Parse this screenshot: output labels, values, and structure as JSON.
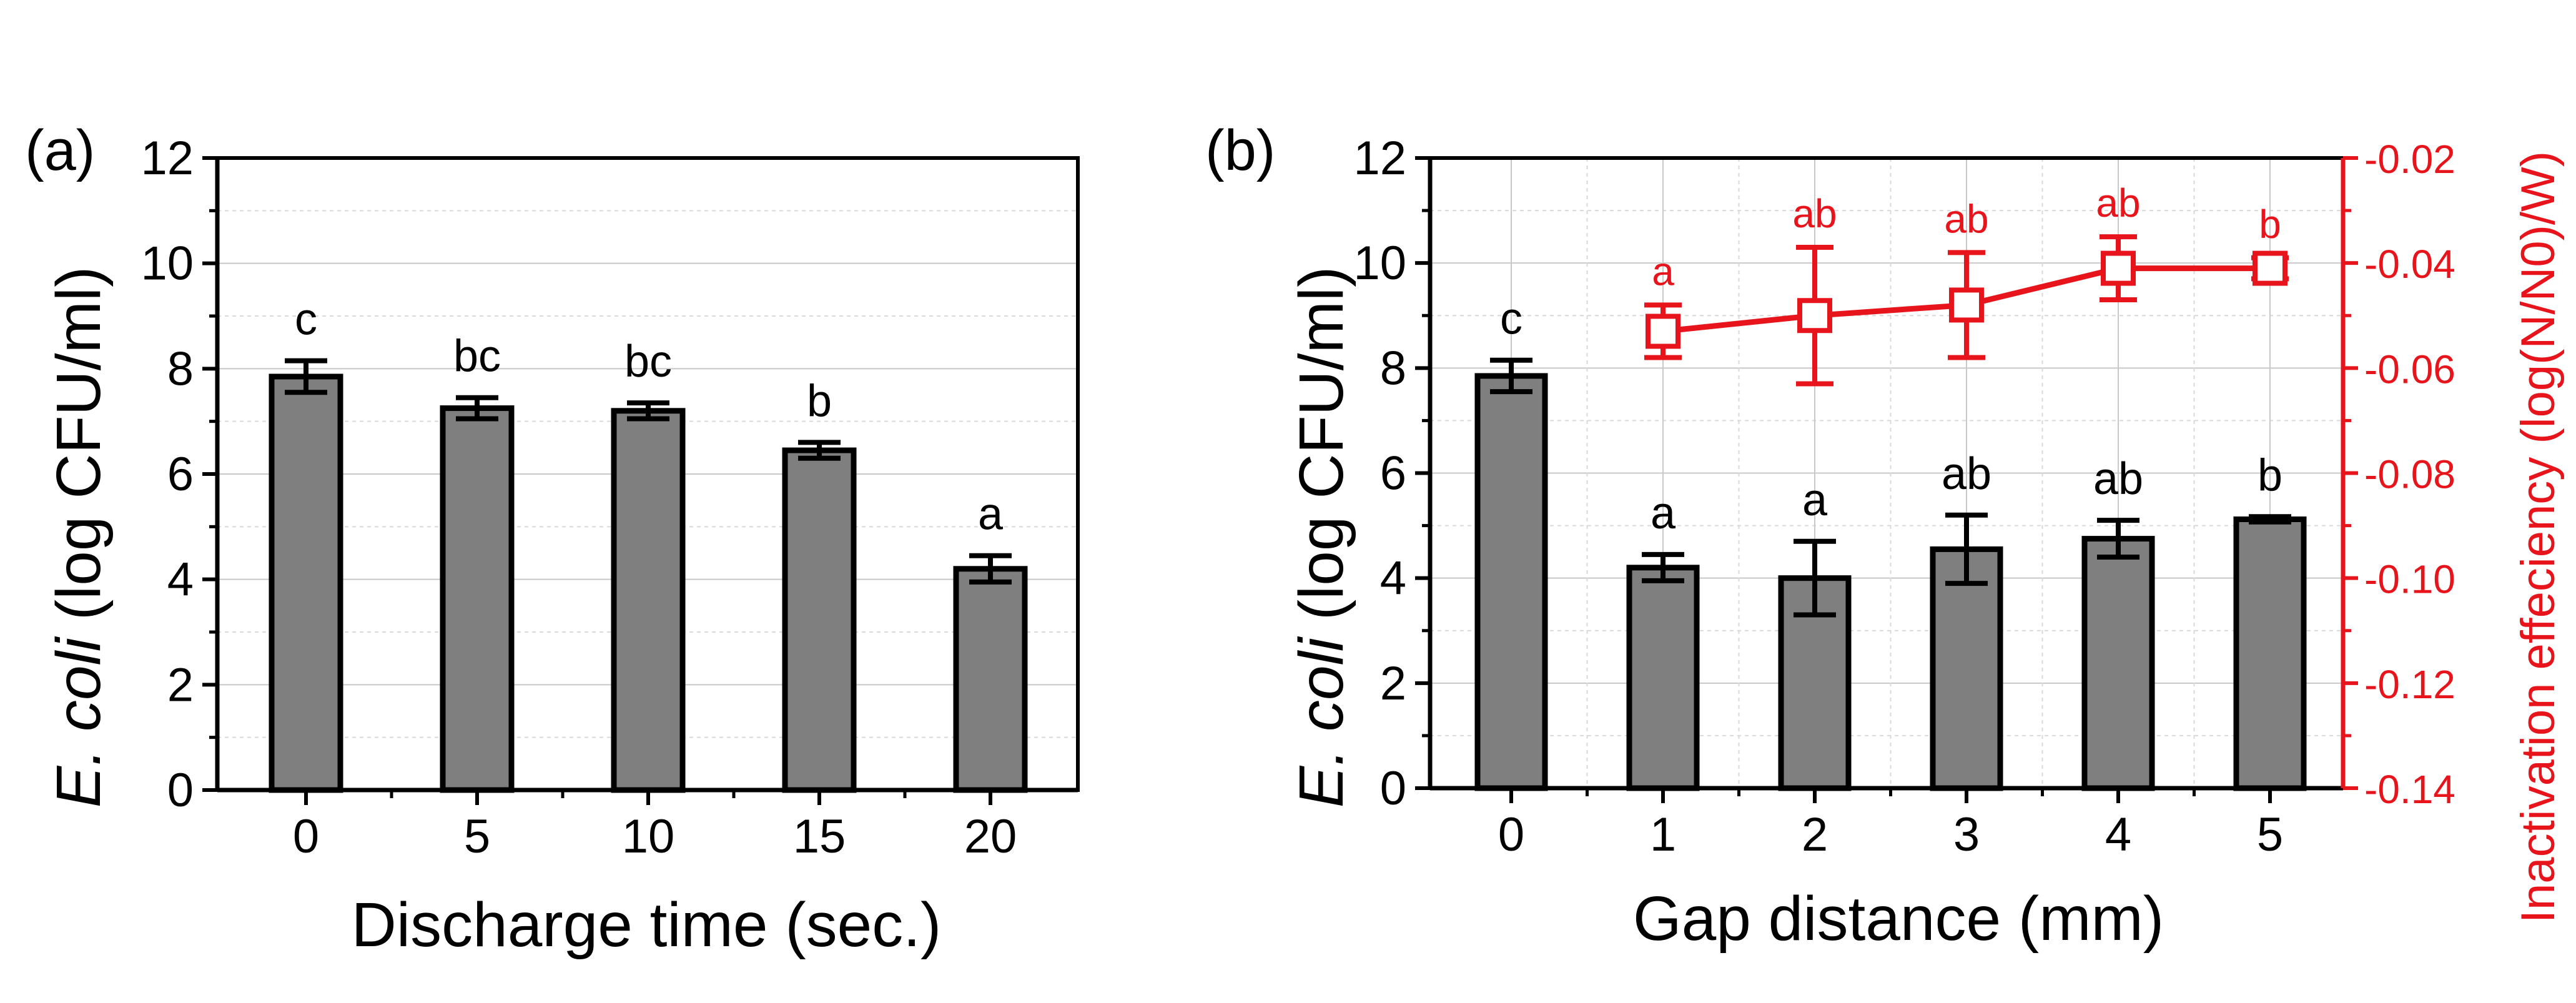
{
  "chart_data": [
    {
      "panel_label": "(a)",
      "type": "bar",
      "xlabel": "Discharge time (sec.)",
      "ylabel_italic": "E. coli",
      "ylabel_rest": " (log CFU/ml)",
      "ylim": [
        0,
        12
      ],
      "yticks": [
        "0",
        "2",
        "4",
        "6",
        "8",
        "10",
        "12"
      ],
      "categories": [
        "0",
        "5",
        "10",
        "15",
        "20"
      ],
      "values": [
        7.85,
        7.25,
        7.2,
        6.45,
        4.2
      ],
      "errors": [
        0.3,
        0.2,
        0.15,
        0.15,
        0.25
      ],
      "annotations": [
        "c",
        "bc",
        "bc",
        "b",
        "a"
      ],
      "grid": true
    },
    {
      "panel_label": "(b)",
      "type": "bar+line",
      "xlabel": "Gap distance (mm)",
      "ylabel_italic": "E. coli",
      "ylabel_rest": " (log CFU/ml)",
      "ylim": [
        0,
        12
      ],
      "yticks": [
        "0",
        "2",
        "4",
        "6",
        "8",
        "10",
        "12"
      ],
      "categories": [
        "0",
        "1",
        "2",
        "3",
        "4",
        "5"
      ],
      "values": [
        7.85,
        4.2,
        4.0,
        4.55,
        4.75,
        5.12
      ],
      "errors": [
        0.3,
        0.25,
        0.7,
        0.65,
        0.35,
        0.05
      ],
      "annotations": [
        "c",
        "a",
        "a",
        "ab",
        "ab",
        "b"
      ],
      "secondary": {
        "ylabel": "Inactivation effeciency (log(N/N0)/W)",
        "ylim": [
          -0.14,
          -0.02
        ],
        "yticks": [
          "-0.14",
          "-0.12",
          "-0.10",
          "-0.08",
          "-0.06",
          "-0.04",
          "-0.02"
        ],
        "x": [
          "1",
          "2",
          "3",
          "4",
          "5"
        ],
        "values": [
          -0.053,
          -0.05,
          -0.048,
          -0.041,
          -0.041
        ],
        "errors": [
          0.005,
          0.013,
          0.01,
          0.006,
          0.002
        ],
        "annotations": [
          "a",
          "ab",
          "ab",
          "ab",
          "b"
        ],
        "color": "#e8141c"
      },
      "grid": true
    }
  ],
  "colors": {
    "bar": "#7f7f7f",
    "secondary": "#e8141c",
    "axis": "#000000"
  }
}
